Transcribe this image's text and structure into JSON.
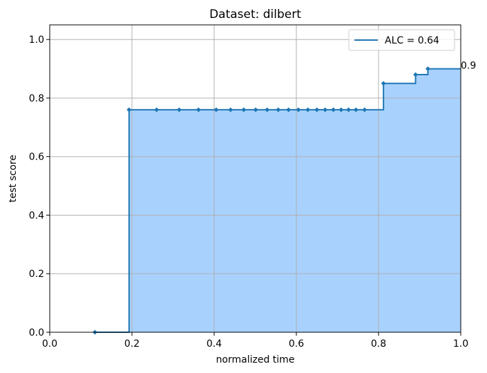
{
  "chart_data": {
    "type": "line",
    "title": "Dataset: dilbert",
    "xlabel": "normalized time",
    "ylabel": "test score",
    "xlim": [
      0.0,
      1.0
    ],
    "ylim": [
      0.0,
      1.05
    ],
    "xticks": [
      "0.0",
      "0.2",
      "0.4",
      "0.6",
      "0.8",
      "1.0"
    ],
    "yticks": [
      "0.0",
      "0.2",
      "0.4",
      "0.6",
      "0.8",
      "1.0"
    ],
    "grid": true,
    "legend_position": "top-right",
    "step": "post",
    "fill_under": true,
    "colors": {
      "line": "#1f77b4",
      "fill": "#a8d1fd",
      "grid": "#b0b0b0"
    },
    "series": [
      {
        "name": "ALC = 0.64",
        "x": [
          0.11,
          0.193,
          0.26,
          0.315,
          0.362,
          0.405,
          0.44,
          0.472,
          0.501,
          0.529,
          0.556,
          0.581,
          0.605,
          0.628,
          0.65,
          0.67,
          0.69,
          0.709,
          0.727,
          0.745,
          0.766,
          0.812,
          0.89,
          0.92,
          1.0
        ],
        "y": [
          0.0,
          0.76,
          0.76,
          0.76,
          0.76,
          0.76,
          0.76,
          0.76,
          0.76,
          0.76,
          0.76,
          0.76,
          0.76,
          0.76,
          0.76,
          0.76,
          0.76,
          0.76,
          0.76,
          0.76,
          0.76,
          0.85,
          0.88,
          0.9,
          0.9
        ],
        "markers": [
          true,
          true,
          true,
          true,
          true,
          true,
          true,
          true,
          true,
          true,
          true,
          true,
          true,
          true,
          true,
          true,
          true,
          true,
          true,
          true,
          true,
          true,
          true,
          true,
          false
        ]
      }
    ],
    "annotations": [
      {
        "text": "0.9",
        "x": 1.0,
        "y": 0.9
      }
    ]
  }
}
